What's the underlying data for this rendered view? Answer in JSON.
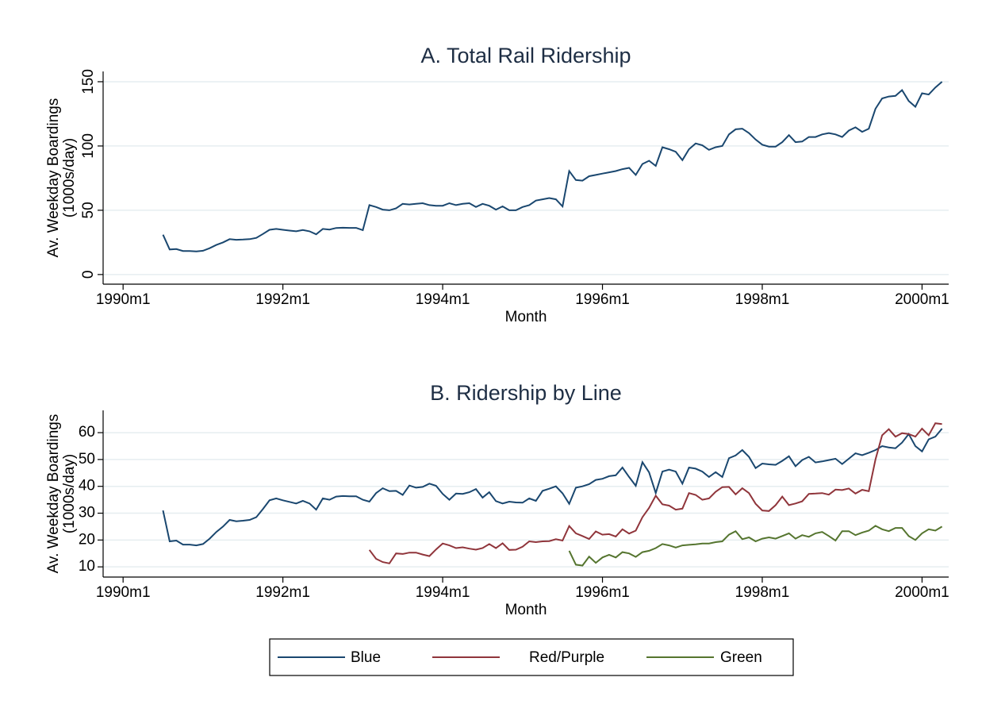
{
  "chart_data": [
    {
      "type": "line",
      "title": "A. Total Rail Ridership",
      "ylabel": [
        "Av. Weekday Boardings",
        "(1000s/day)"
      ],
      "xlabel": "Month",
      "x": [
        "1990m7",
        "1990m8",
        "1990m9",
        "1990m10",
        "1990m11",
        "1990m12",
        "1991m1",
        "1991m2",
        "1991m3",
        "1991m4",
        "1991m5",
        "1991m6",
        "1991m7",
        "1991m8",
        "1991m9",
        "1991m10",
        "1991m11",
        "1991m12",
        "1992m1",
        "1992m2",
        "1992m3",
        "1992m4",
        "1992m5",
        "1992m6",
        "1992m7",
        "1992m8",
        "1992m9",
        "1992m10",
        "1992m11",
        "1992m12",
        "1993m1",
        "1993m2",
        "1993m3",
        "1993m4",
        "1993m5",
        "1993m6",
        "1993m7",
        "1993m8",
        "1993m9",
        "1993m10",
        "1993m11",
        "1993m12",
        "1994m1",
        "1994m2",
        "1994m3",
        "1994m4",
        "1994m5",
        "1994m6",
        "1994m7",
        "1994m8",
        "1994m9",
        "1994m10",
        "1994m11",
        "1994m12",
        "1995m1",
        "1995m2",
        "1995m3",
        "1995m4",
        "1995m5",
        "1995m6",
        "1995m7",
        "1995m8",
        "1995m9",
        "1995m10",
        "1995m11",
        "1995m12",
        "1996m1",
        "1996m2",
        "1996m3",
        "1996m4",
        "1996m5",
        "1996m6",
        "1996m7",
        "1996m8",
        "1996m9",
        "1996m10",
        "1996m11",
        "1996m12",
        "1997m1",
        "1997m2",
        "1997m3",
        "1997m4",
        "1997m5",
        "1997m6",
        "1997m7",
        "1997m8",
        "1997m9",
        "1997m10",
        "1997m11",
        "1997m12",
        "1998m1",
        "1998m2",
        "1998m3",
        "1998m4",
        "1998m5",
        "1998m6",
        "1998m7",
        "1998m8",
        "1998m9",
        "1998m10",
        "1998m11",
        "1998m12",
        "1999m1",
        "1999m2",
        "1999m3",
        "1999m4",
        "1999m5",
        "1999m6",
        "1999m7",
        "1999m8",
        "1999m9",
        "1999m10",
        "1999m11",
        "1999m12",
        "2000m1",
        "2000m2",
        "2000m3",
        "2000m4"
      ],
      "series": [
        {
          "name": "Total",
          "color": "#1a476f",
          "values": [
            31,
            19.5,
            19.8,
            18.3,
            18.3,
            18,
            18.5,
            20.5,
            23,
            25,
            27.5,
            27,
            27.2,
            27.5,
            28.5,
            31.5,
            34.8,
            35.5,
            34.8,
            34.2,
            33.6,
            34.6,
            33.6,
            31.3,
            35.5,
            35,
            36.2,
            36.4,
            36.3,
            36.3,
            34.5,
            54,
            52.5,
            50.5,
            50,
            51.5,
            55,
            54.5,
            55,
            55.5,
            54,
            53.5,
            53.5,
            55.5,
            54,
            55,
            55.5,
            52.5,
            55,
            53.5,
            50.5,
            53,
            50,
            50,
            52.5,
            54,
            57.5,
            58.5,
            59.5,
            58.5,
            53,
            80.5,
            73.5,
            73,
            76.5,
            77.5,
            78.5,
            79.5,
            80.5,
            82,
            83,
            77.5,
            86,
            88.5,
            84.5,
            99,
            97.5,
            95.5,
            89,
            97.5,
            102,
            100.5,
            97,
            99,
            100,
            109,
            113,
            113.5,
            110,
            105,
            101,
            99.5,
            99.5,
            103,
            108.5,
            103,
            103.5,
            107,
            107,
            109,
            110,
            109,
            107,
            112,
            114.5,
            111,
            113.5,
            129,
            137,
            138.5,
            139,
            143.5,
            135,
            130.5,
            141,
            140,
            145.5,
            150
          ]
        }
      ],
      "xlim": [
        "1989m10",
        "2000m5"
      ],
      "xticks": [
        "1990m1",
        "1992m1",
        "1994m1",
        "1996m1",
        "1998m1",
        "2000m1"
      ],
      "ylim": [
        -7.5,
        158
      ],
      "yticks": [
        0,
        50,
        100,
        150
      ],
      "grid": true
    },
    {
      "type": "line",
      "title": "B. Ridership by Line",
      "ylabel": [
        "Av. Weekday Boardings",
        "(1000s/day)"
      ],
      "xlabel": "Month",
      "x": [
        "1990m7",
        "1990m8",
        "1990m9",
        "1990m10",
        "1990m11",
        "1990m12",
        "1991m1",
        "1991m2",
        "1991m3",
        "1991m4",
        "1991m5",
        "1991m6",
        "1991m7",
        "1991m8",
        "1991m9",
        "1991m10",
        "1991m11",
        "1991m12",
        "1992m1",
        "1992m2",
        "1992m3",
        "1992m4",
        "1992m5",
        "1992m6",
        "1992m7",
        "1992m8",
        "1992m9",
        "1992m10",
        "1992m11",
        "1992m12",
        "1993m1",
        "1993m2",
        "1993m3",
        "1993m4",
        "1993m5",
        "1993m6",
        "1993m7",
        "1993m8",
        "1993m9",
        "1993m10",
        "1993m11",
        "1993m12",
        "1994m1",
        "1994m2",
        "1994m3",
        "1994m4",
        "1994m5",
        "1994m6",
        "1994m7",
        "1994m8",
        "1994m9",
        "1994m10",
        "1994m11",
        "1994m12",
        "1995m1",
        "1995m2",
        "1995m3",
        "1995m4",
        "1995m5",
        "1995m6",
        "1995m7",
        "1995m8",
        "1995m9",
        "1995m10",
        "1995m11",
        "1995m12",
        "1996m1",
        "1996m2",
        "1996m3",
        "1996m4",
        "1996m5",
        "1996m6",
        "1996m7",
        "1996m8",
        "1996m9",
        "1996m10",
        "1996m11",
        "1996m12",
        "1997m1",
        "1997m2",
        "1997m3",
        "1997m4",
        "1997m5",
        "1997m6",
        "1997m7",
        "1997m8",
        "1997m9",
        "1997m10",
        "1997m11",
        "1997m12",
        "1998m1",
        "1998m2",
        "1998m3",
        "1998m4",
        "1998m5",
        "1998m6",
        "1998m7",
        "1998m8",
        "1998m9",
        "1998m10",
        "1998m11",
        "1998m12",
        "1999m1",
        "1999m2",
        "1999m3",
        "1999m4",
        "1999m5",
        "1999m6",
        "1999m7",
        "1999m8",
        "1999m9",
        "1999m10",
        "1999m11",
        "1999m12",
        "2000m1",
        "2000m2",
        "2000m3",
        "2000m4"
      ],
      "series": [
        {
          "name": "Blue",
          "color": "#1a476f",
          "values": [
            31,
            19.5,
            19.8,
            18.3,
            18.3,
            18,
            18.5,
            20.5,
            23,
            25,
            27.5,
            27,
            27.2,
            27.5,
            28.5,
            31.5,
            34.8,
            35.5,
            34.8,
            34.2,
            33.6,
            34.6,
            33.6,
            31.3,
            35.5,
            35,
            36.2,
            36.4,
            36.3,
            36.3,
            35,
            34.3,
            37.5,
            39.3,
            38.2,
            38.3,
            36.8,
            40.3,
            39.5,
            39.8,
            41,
            40.2,
            37.2,
            35,
            37.3,
            37.2,
            37.8,
            39,
            35.8,
            37.8,
            34.5,
            33.6,
            34.3,
            34,
            33.9,
            35.5,
            34.6,
            38.3,
            39.1,
            40,
            37.4,
            33.5,
            39.5,
            40,
            40.8,
            42.4,
            42.8,
            43.8,
            44.1,
            47,
            43.5,
            40.2,
            49,
            45.2,
            37.5,
            45.5,
            46.2,
            45.5,
            41,
            47,
            46.6,
            45.5,
            43.5,
            45.3,
            43.5,
            50.5,
            51.5,
            53.5,
            51,
            46.8,
            48.5,
            48.2,
            48,
            49.5,
            51.2,
            47.5,
            49.8,
            51,
            48.9,
            49.3,
            49.8,
            50.3,
            48.3,
            50.3,
            52.3,
            51.6,
            52.5,
            53.5,
            55,
            54.5,
            54.2,
            56.3,
            59.5,
            55,
            53,
            57.5,
            58.5,
            61.5
          ]
        },
        {
          "name": "Red/Purple",
          "color": "#90353b",
          "values": [
            null,
            null,
            null,
            null,
            null,
            null,
            null,
            null,
            null,
            null,
            null,
            null,
            null,
            null,
            null,
            null,
            null,
            null,
            null,
            null,
            null,
            null,
            null,
            null,
            null,
            null,
            null,
            null,
            null,
            null,
            null,
            16.3,
            13,
            11.8,
            11.3,
            15,
            14.8,
            15.3,
            15.3,
            14.6,
            14,
            16.5,
            18.7,
            18,
            17,
            17.3,
            16.8,
            16.4,
            17,
            18.5,
            17,
            18.8,
            16.3,
            16.4,
            17.5,
            19.5,
            19.2,
            19.5,
            19.6,
            20.3,
            19.8,
            25.2,
            22.5,
            21.5,
            20.4,
            23.2,
            22,
            22.2,
            21.3,
            24,
            22.4,
            23.5,
            28.5,
            32,
            36.5,
            33.3,
            32.8,
            31.3,
            31.7,
            37.5,
            36.8,
            35,
            35.5,
            38,
            39.7,
            39.8,
            37,
            39.3,
            37.5,
            33.5,
            31,
            30.8,
            33,
            36.2,
            33,
            33.6,
            34.4,
            37.2,
            37.3,
            37.5,
            36.9,
            38.8,
            38.6,
            39.2,
            37.3,
            38.7,
            38.2,
            50,
            59,
            61.3,
            58.5,
            59.8,
            59.5,
            58.5,
            61.5,
            59,
            63.5,
            63.2
          ]
        },
        {
          "name": "Green",
          "color": "#55752f",
          "values": [
            null,
            null,
            null,
            null,
            null,
            null,
            null,
            null,
            null,
            null,
            null,
            null,
            null,
            null,
            null,
            null,
            null,
            null,
            null,
            null,
            null,
            null,
            null,
            null,
            null,
            null,
            null,
            null,
            null,
            null,
            null,
            null,
            null,
            null,
            null,
            null,
            null,
            null,
            null,
            null,
            null,
            null,
            null,
            null,
            null,
            null,
            null,
            null,
            null,
            null,
            null,
            null,
            null,
            null,
            null,
            null,
            null,
            null,
            null,
            null,
            null,
            16,
            10.8,
            10.5,
            13.8,
            11.5,
            13.5,
            14.5,
            13.5,
            15.5,
            15,
            13.7,
            15.5,
            16,
            17,
            18.5,
            18,
            17.2,
            18,
            18.2,
            18.4,
            18.7,
            18.7,
            19.2,
            19.5,
            22,
            23.3,
            20.3,
            21,
            19.5,
            20.5,
            21,
            20.5,
            21.5,
            22.5,
            20.5,
            21.8,
            21.2,
            22.5,
            23,
            21.5,
            19.8,
            23.3,
            23.3,
            21.8,
            22.8,
            23.5,
            25.3,
            24,
            23.3,
            24.5,
            24.5,
            21.5,
            20,
            22.5,
            24,
            23.5,
            25
          ]
        }
      ],
      "xlim": [
        "1989m10",
        "2000m5"
      ],
      "xticks": [
        "1990m1",
        "1992m1",
        "1994m1",
        "1996m1",
        "1998m1",
        "2000m1"
      ],
      "ylim": [
        6.2,
        68.3
      ],
      "yticks": [
        10,
        20,
        30,
        40,
        50,
        60
      ],
      "grid": true,
      "legend": "bottom"
    }
  ]
}
